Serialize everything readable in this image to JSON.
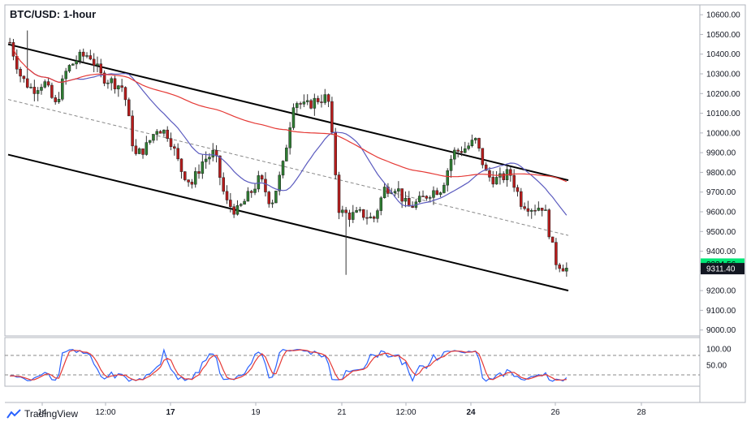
{
  "chart_data": [
    {
      "type": "candlestick",
      "title": "BTC/USD: 1-hour",
      "x_ticks": [
        "14",
        "12:00",
        "17",
        "19",
        "21",
        "12:00",
        "24",
        "26",
        "28"
      ],
      "x_ticks_bold": [
        "17",
        "24"
      ],
      "y_ticks": [
        "10600.00",
        "10500.00",
        "10400.00",
        "10300.00",
        "10200.00",
        "10100.00",
        "10000.00",
        "9900.00",
        "9800.00",
        "9700.00",
        "9600.00",
        "9500.00",
        "9400.00",
        "9300.00",
        "9200.00",
        "9100.00",
        "9000.00"
      ],
      "ylim": [
        8970,
        10650
      ],
      "last_price_label": "9311.40",
      "ask_price_label": "9334.56",
      "close_trend": [
        10460,
        10280,
        10220,
        10260,
        10140,
        10320,
        10380,
        10400,
        10290,
        10260,
        10230,
        9880,
        9930,
        10030,
        9990,
        9820,
        9740,
        9860,
        9900,
        9650,
        9600,
        9680,
        9770,
        9640,
        9820,
        10170,
        10130,
        10170,
        10180,
        9600,
        9580,
        9590,
        9560,
        9720,
        9730,
        9620,
        9650,
        9700,
        9720,
        9900,
        9920,
        9960,
        9780,
        9760,
        9800,
        9650,
        9620,
        9630,
        9350,
        9311
      ],
      "channel_upper": [
        [
          0,
          10450
        ],
        [
          100,
          9760
        ]
      ],
      "channel_lower": [
        [
          0,
          9890
        ],
        [
          100,
          9200
        ]
      ],
      "channel_mid": [
        [
          0,
          10170
        ],
        [
          100,
          9480
        ]
      ],
      "ma_fast_color": "#5b5bbf",
      "ma_slow_color": "#e53935",
      "bull_color": "#2e7d32",
      "bear_color": "#b71c1c"
    },
    {
      "type": "line",
      "name": "stochastic",
      "y_ticks": [
        "100.00",
        "50.00"
      ],
      "levels": [
        80,
        20
      ],
      "k_color": "#2962ff",
      "d_color": "#e53935"
    }
  ],
  "footer": {
    "brand": "TradingView"
  }
}
